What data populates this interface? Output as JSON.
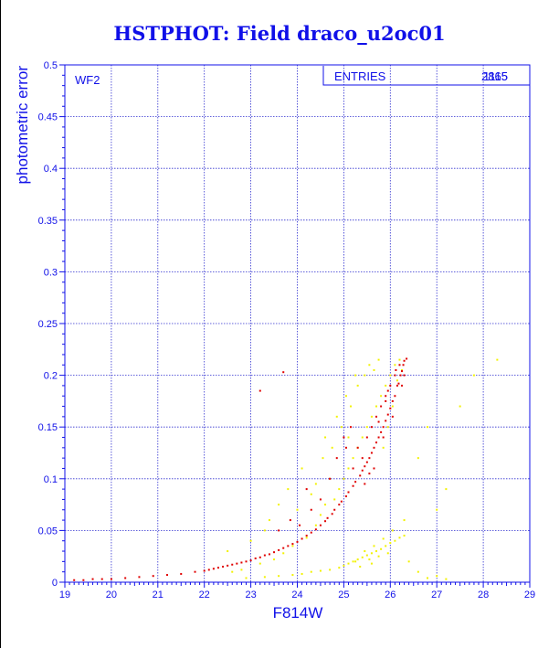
{
  "title": "HSTPHOT: Field draco_u2oc01",
  "panel_label": "WF2",
  "stats_box": {
    "label": "ENTRIES",
    "value_back": "2865",
    "value_front": "1115"
  },
  "colors": {
    "axis": "#1010e8",
    "grid": "#3030d0",
    "series_red": "#e00000",
    "series_yellow": "#f2f200",
    "title": "#1010e8"
  },
  "chart_data": {
    "type": "scatter",
    "title": "HSTPHOT: Field draco_u2oc01",
    "xlabel": "F814W",
    "ylabel": "photometric error",
    "xlim": [
      19,
      29
    ],
    "ylim": [
      0,
      0.5
    ],
    "x_ticks": [
      "19",
      "20",
      "21",
      "22",
      "23",
      "24",
      "25",
      "26",
      "27",
      "28",
      "29"
    ],
    "y_ticks": [
      "0",
      "0.05",
      "0.1",
      "0.15",
      "0.2",
      "0.25",
      "0.3",
      "0.35",
      "0.4",
      "0.45",
      "0.5"
    ],
    "grid": true,
    "series": [
      {
        "color": "#f2f200",
        "points": [
          [
            22.9,
            0.004
          ],
          [
            23.3,
            0.005
          ],
          [
            23.6,
            0.006
          ],
          [
            23.9,
            0.007
          ],
          [
            24.1,
            0.008
          ],
          [
            24.3,
            0.01
          ],
          [
            24.5,
            0.011
          ],
          [
            24.7,
            0.012
          ],
          [
            24.9,
            0.014
          ],
          [
            25.0,
            0.016
          ],
          [
            25.1,
            0.018
          ],
          [
            25.2,
            0.02
          ],
          [
            25.3,
            0.022
          ],
          [
            25.4,
            0.024
          ],
          [
            25.5,
            0.026
          ],
          [
            25.6,
            0.028
          ],
          [
            25.7,
            0.03
          ],
          [
            25.8,
            0.032
          ],
          [
            25.9,
            0.035
          ],
          [
            26.0,
            0.038
          ],
          [
            26.1,
            0.04
          ],
          [
            26.2,
            0.043
          ],
          [
            26.3,
            0.045
          ],
          [
            26.4,
            0.02
          ],
          [
            26.6,
            0.01
          ],
          [
            26.8,
            0.004
          ],
          [
            27.0,
            0.006
          ],
          [
            27.2,
            0.003
          ],
          [
            25.25,
            0.02
          ],
          [
            25.45,
            0.03
          ],
          [
            25.6,
            0.018
          ],
          [
            25.75,
            0.025
          ],
          [
            25.85,
            0.042
          ],
          [
            25.35,
            0.015
          ],
          [
            25.55,
            0.022
          ],
          [
            25.65,
            0.035
          ],
          [
            25.95,
            0.028
          ],
          [
            26.05,
            0.05
          ],
          [
            22.6,
            0.01
          ],
          [
            22.8,
            0.012
          ],
          [
            23.2,
            0.018
          ],
          [
            23.5,
            0.022
          ],
          [
            23.7,
            0.028
          ],
          [
            23.9,
            0.035
          ],
          [
            24.2,
            0.043
          ],
          [
            24.4,
            0.055
          ],
          [
            24.5,
            0.065
          ],
          [
            24.6,
            0.075
          ],
          [
            24.8,
            0.08
          ],
          [
            24.9,
            0.09
          ],
          [
            25.0,
            0.1
          ],
          [
            25.1,
            0.11
          ],
          [
            25.2,
            0.12
          ],
          [
            25.3,
            0.13
          ],
          [
            25.4,
            0.14
          ],
          [
            25.5,
            0.15
          ],
          [
            25.6,
            0.16
          ],
          [
            25.7,
            0.17
          ],
          [
            25.8,
            0.18
          ],
          [
            25.9,
            0.19
          ],
          [
            26.0,
            0.2
          ],
          [
            26.1,
            0.21
          ],
          [
            26.2,
            0.215
          ],
          [
            24.3,
            0.085
          ],
          [
            24.55,
            0.12
          ],
          [
            24.75,
            0.13
          ],
          [
            24.95,
            0.15
          ],
          [
            25.15,
            0.17
          ],
          [
            25.3,
            0.19
          ],
          [
            25.45,
            0.2
          ],
          [
            25.55,
            0.21
          ],
          [
            25.65,
            0.205
          ],
          [
            25.75,
            0.215
          ],
          [
            23.4,
            0.06
          ],
          [
            23.6,
            0.075
          ],
          [
            23.8,
            0.09
          ],
          [
            24.1,
            0.11
          ],
          [
            24.0,
            0.07
          ],
          [
            24.6,
            0.14
          ],
          [
            24.85,
            0.16
          ],
          [
            25.05,
            0.18
          ],
          [
            25.25,
            0.2
          ],
          [
            25.1,
            0.14
          ],
          [
            23.0,
            0.04
          ],
          [
            22.5,
            0.03
          ],
          [
            23.3,
            0.05
          ],
          [
            24.7,
            0.1
          ],
          [
            24.4,
            0.095
          ],
          [
            26.15,
            0.195
          ],
          [
            26.25,
            0.205
          ],
          [
            26.05,
            0.17
          ],
          [
            25.95,
            0.15
          ],
          [
            25.85,
            0.13
          ],
          [
            26.6,
            0.12
          ],
          [
            27.2,
            0.09
          ],
          [
            27.5,
            0.17
          ],
          [
            28.3,
            0.215
          ],
          [
            27.8,
            0.2
          ],
          [
            26.3,
            0.06
          ],
          [
            27.0,
            0.07
          ],
          [
            26.8,
            0.15
          ]
        ]
      },
      {
        "color": "#e00000",
        "points": [
          [
            19.2,
            0.002
          ],
          [
            19.4,
            0.002
          ],
          [
            19.6,
            0.003
          ],
          [
            19.8,
            0.003
          ],
          [
            20.0,
            0.003
          ],
          [
            20.3,
            0.004
          ],
          [
            20.6,
            0.005
          ],
          [
            20.9,
            0.006
          ],
          [
            21.2,
            0.007
          ],
          [
            21.5,
            0.008
          ],
          [
            21.8,
            0.01
          ],
          [
            22.1,
            0.012
          ],
          [
            22.3,
            0.014
          ],
          [
            22.5,
            0.016
          ],
          [
            22.7,
            0.018
          ],
          [
            22.9,
            0.02
          ],
          [
            23.1,
            0.023
          ],
          [
            23.3,
            0.026
          ],
          [
            23.5,
            0.029
          ],
          [
            23.7,
            0.033
          ],
          [
            23.9,
            0.037
          ],
          [
            24.1,
            0.042
          ],
          [
            24.3,
            0.048
          ],
          [
            24.5,
            0.055
          ],
          [
            24.65,
            0.062
          ],
          [
            24.8,
            0.07
          ],
          [
            24.95,
            0.078
          ],
          [
            25.1,
            0.087
          ],
          [
            25.25,
            0.097
          ],
          [
            25.4,
            0.108
          ],
          [
            25.5,
            0.116
          ],
          [
            25.6,
            0.125
          ],
          [
            25.7,
            0.135
          ],
          [
            25.8,
            0.145
          ],
          [
            25.9,
            0.156
          ],
          [
            26.0,
            0.168
          ],
          [
            26.1,
            0.18
          ],
          [
            26.18,
            0.192
          ],
          [
            26.25,
            0.204
          ],
          [
            26.3,
            0.214
          ],
          [
            26.35,
            0.216
          ],
          [
            26.28,
            0.21
          ],
          [
            26.22,
            0.2
          ],
          [
            26.15,
            0.19
          ],
          [
            26.05,
            0.175
          ],
          [
            25.95,
            0.162
          ],
          [
            25.85,
            0.15
          ],
          [
            25.75,
            0.14
          ],
          [
            25.65,
            0.13
          ],
          [
            25.55,
            0.12
          ],
          [
            25.45,
            0.112
          ],
          [
            25.35,
            0.103
          ],
          [
            25.2,
            0.093
          ],
          [
            25.05,
            0.083
          ],
          [
            24.9,
            0.075
          ],
          [
            24.75,
            0.066
          ],
          [
            24.6,
            0.059
          ],
          [
            24.4,
            0.051
          ],
          [
            24.2,
            0.045
          ],
          [
            24.0,
            0.039
          ],
          [
            23.8,
            0.035
          ],
          [
            23.6,
            0.031
          ],
          [
            23.4,
            0.027
          ],
          [
            23.2,
            0.024
          ],
          [
            23.0,
            0.021
          ],
          [
            22.8,
            0.019
          ],
          [
            22.6,
            0.017
          ],
          [
            22.4,
            0.015
          ],
          [
            22.2,
            0.013
          ],
          [
            22.0,
            0.011
          ],
          [
            25.3,
            0.13
          ],
          [
            25.5,
            0.14
          ],
          [
            25.7,
            0.16
          ],
          [
            25.9,
            0.18
          ],
          [
            26.1,
            0.2
          ],
          [
            25.6,
            0.15
          ],
          [
            25.8,
            0.17
          ],
          [
            26.0,
            0.19
          ],
          [
            25.4,
            0.12
          ],
          [
            25.2,
            0.11
          ],
          [
            25.05,
            0.13
          ],
          [
            25.15,
            0.15
          ],
          [
            24.85,
            0.12
          ],
          [
            25.0,
            0.14
          ],
          [
            24.7,
            0.1
          ],
          [
            23.7,
            0.203
          ],
          [
            23.2,
            0.185
          ],
          [
            24.2,
            0.09
          ],
          [
            24.5,
            0.08
          ],
          [
            24.3,
            0.07
          ],
          [
            23.85,
            0.06
          ],
          [
            23.6,
            0.05
          ],
          [
            24.05,
            0.055
          ],
          [
            25.9,
            0.175
          ],
          [
            26.2,
            0.21
          ],
          [
            25.75,
            0.155
          ],
          [
            25.95,
            0.185
          ],
          [
            26.12,
            0.205
          ],
          [
            26.3,
            0.2
          ],
          [
            26.25,
            0.19
          ],
          [
            25.65,
            0.11
          ],
          [
            25.85,
            0.14
          ],
          [
            26.05,
            0.16
          ],
          [
            25.55,
            0.105
          ],
          [
            25.45,
            0.095
          ]
        ]
      }
    ]
  }
}
